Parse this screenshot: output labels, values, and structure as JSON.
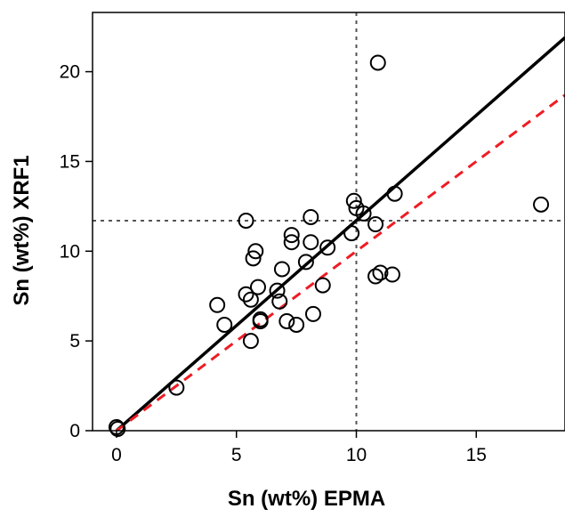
{
  "chart_data": {
    "type": "scatter",
    "title": "",
    "xlabel": "Sn (wt%) EPMA",
    "ylabel": "Sn (wt%) XRF1",
    "xlim": [
      -1,
      18.7
    ],
    "ylim": [
      0,
      23.3
    ],
    "xticks": [
      0,
      5,
      10,
      15
    ],
    "yticks": [
      0,
      5,
      10,
      15,
      20
    ],
    "grid": false,
    "legend": "none",
    "series": [
      {
        "marker": "open-circle",
        "color": "#000000",
        "points": [
          [
            0.0,
            0.2
          ],
          [
            0.05,
            0.1
          ],
          [
            2.5,
            2.4
          ],
          [
            4.2,
            7.0
          ],
          [
            4.5,
            5.9
          ],
          [
            5.4,
            11.7
          ],
          [
            5.4,
            7.6
          ],
          [
            5.6,
            7.3
          ],
          [
            5.6,
            5.0
          ],
          [
            5.7,
            9.6
          ],
          [
            5.8,
            10.0
          ],
          [
            5.9,
            8.0
          ],
          [
            6.0,
            6.2
          ],
          [
            6.0,
            6.1
          ],
          [
            6.7,
            7.8
          ],
          [
            6.8,
            7.2
          ],
          [
            6.9,
            9.0
          ],
          [
            7.1,
            6.1
          ],
          [
            7.3,
            10.9
          ],
          [
            7.3,
            10.5
          ],
          [
            7.5,
            5.9
          ],
          [
            7.9,
            9.4
          ],
          [
            8.1,
            11.9
          ],
          [
            8.1,
            10.5
          ],
          [
            8.2,
            6.5
          ],
          [
            8.6,
            8.1
          ],
          [
            8.8,
            10.2
          ],
          [
            9.8,
            11.0
          ],
          [
            9.9,
            12.8
          ],
          [
            10.0,
            12.4
          ],
          [
            10.3,
            12.1
          ],
          [
            10.8,
            8.6
          ],
          [
            10.8,
            11.5
          ],
          [
            10.9,
            20.5
          ],
          [
            11.0,
            8.8
          ],
          [
            11.5,
            8.7
          ],
          [
            11.6,
            13.2
          ],
          [
            17.7,
            12.6
          ]
        ]
      }
    ],
    "lines": [
      {
        "kind": "fit",
        "style": "solid",
        "color": "#000000",
        "from": [
          0,
          0
        ],
        "to": [
          18.7,
          21.9
        ]
      },
      {
        "kind": "identity",
        "style": "dashed",
        "color": "#ee1c24",
        "from": [
          0,
          0
        ],
        "to": [
          18.7,
          18.7
        ]
      },
      {
        "kind": "reference-vertical",
        "style": "dotted",
        "color": "#555555",
        "x": 10
      },
      {
        "kind": "reference-horizontal",
        "style": "dotted",
        "color": "#555555",
        "y": 11.7
      }
    ]
  }
}
